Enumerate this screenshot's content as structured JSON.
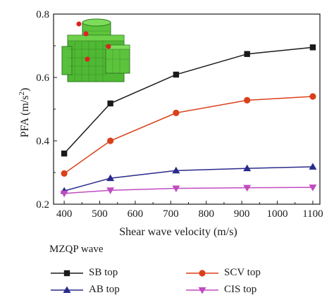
{
  "chart_data": {
    "type": "line",
    "xlabel": "Shear wave velocity (m/s)",
    "ylabel": "PFA (m/s²)",
    "xlim": [
      370,
      1120
    ],
    "ylim": [
      0.2,
      0.8
    ],
    "x_ticks": [
      "400",
      "500",
      "600",
      "700",
      "800",
      "900",
      "1000",
      "1100"
    ],
    "y_ticks": [
      "0.2",
      "0.4",
      "0.6",
      "0.8"
    ],
    "x": [
      400,
      530,
      715,
      915,
      1100
    ],
    "legend_title": "MZQP wave",
    "inset": "green 3D structural model with red monitoring points",
    "series": [
      {
        "name": "SB top",
        "color": "#1a1a1a",
        "marker": "square",
        "values": [
          0.36,
          0.518,
          0.609,
          0.674,
          0.695
        ]
      },
      {
        "name": "SCV top",
        "color": "#d9401a",
        "marker": "circle",
        "values": [
          0.297,
          0.4,
          0.488,
          0.528,
          0.54
        ]
      },
      {
        "name": "AB top",
        "color": "#2a2a8c",
        "marker": "triangle-up",
        "values": [
          0.242,
          0.282,
          0.306,
          0.313,
          0.318
        ]
      },
      {
        "name": "CIS top",
        "color": "#c04cc0",
        "marker": "triangle-down",
        "values": [
          0.234,
          0.244,
          0.25,
          0.252,
          0.253
        ]
      }
    ]
  }
}
